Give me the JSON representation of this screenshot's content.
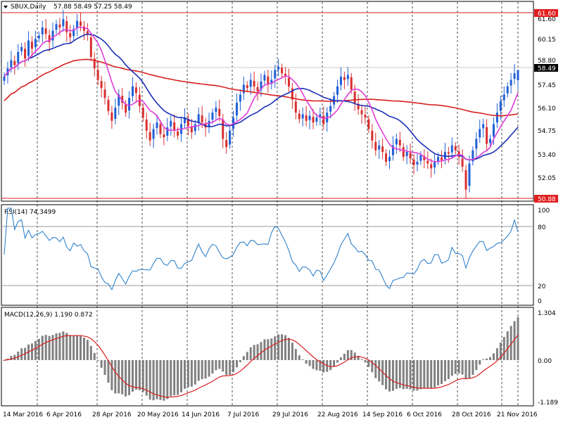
{
  "header": {
    "symbol_label": "SBUX,Daily",
    "ohlc": "57.88 58.49 57.25 58.49"
  },
  "price_pane": {
    "ticks": [
      "61.60",
      "60.15",
      "58.80",
      "57.45",
      "56.10",
      "54.75",
      "53.40",
      "52.05",
      "50.88"
    ],
    "resistance_label": "61.60",
    "support_label": "50.88",
    "current_label": "58.49",
    "colors": {
      "bull_candle": "#1f5fd6",
      "bear_candle": "#d92e2e",
      "ma_fast": "#e03cd9",
      "ma_mid": "#1b2fb8",
      "ma_slow": "#d91e1e",
      "level_line": "#d91e1e",
      "tag_red": "#e21d1d"
    }
  },
  "rsi_pane": {
    "title": "RSI(14) 74.3499",
    "ticks": [
      "100",
      "80",
      "20",
      "0"
    ],
    "color": "#1e78c8"
  },
  "macd_pane": {
    "title": "MACD(12,26,9) 1.190 0.872",
    "ticks": [
      "1.304",
      "0.00",
      "-1.189"
    ],
    "hist_color": "#808080",
    "signal_color": "#d91e1e"
  },
  "x_axis": {
    "dates": [
      "14 Mar 2016",
      "6 Apr 2016",
      "28 Apr 2016",
      "20 May 2016",
      "14 Jun 2016",
      "7 Jul 2016",
      "29 Jul 2016",
      "22 Aug 2016",
      "14 Sep 2016",
      "6 Oct 2016",
      "28 Oct 2016",
      "21 Nov 2016"
    ]
  },
  "chart_data": {
    "type": "candlestick",
    "title": "SBUX,Daily",
    "last_ohlc": {
      "open": 57.88,
      "high": 58.49,
      "low": 57.25,
      "close": 58.49
    },
    "closes": [
      58.1,
      58.6,
      59.1,
      58.8,
      59.6,
      59.9,
      59.2,
      60.3,
      59.8,
      60.4,
      60.6,
      61.1,
      60.7,
      60.2,
      60.9,
      61.3,
      61.1,
      61.6,
      60.8,
      60.5,
      61.0,
      61.5,
      61.2,
      60.9,
      60.7,
      59.3,
      58.6,
      57.9,
      57.4,
      56.8,
      56.0,
      55.4,
      56.2,
      57.0,
      56.5,
      55.9,
      56.8,
      57.5,
      57.1,
      56.3,
      55.6,
      54.8,
      54.2,
      54.9,
      55.3,
      54.6,
      54.4,
      55.0,
      55.4,
      54.8,
      54.5,
      55.2,
      55.6,
      55.1,
      54.7,
      55.2,
      55.8,
      55.3,
      55.0,
      55.4,
      55.9,
      56.2,
      55.7,
      54.3,
      53.8,
      54.8,
      55.6,
      56.5,
      57.0,
      57.6,
      57.4,
      57.9,
      57.5,
      57.2,
      57.8,
      58.2,
      57.6,
      57.9,
      58.5,
      58.7,
      58.3,
      58.1,
      57.5,
      56.7,
      55.9,
      55.5,
      55.8,
      55.4,
      55.7,
      55.3,
      55.6,
      55.8,
      55.2,
      55.9,
      56.3,
      56.9,
      57.5,
      58.1,
      57.9,
      58.2,
      57.3,
      56.5,
      56.1,
      55.8,
      55.6,
      54.9,
      54.2,
      53.6,
      53.9,
      53.5,
      52.9,
      53.2,
      53.9,
      54.3,
      53.9,
      53.2,
      53.5,
      53.1,
      52.7,
      52.9,
      53.3,
      53.0,
      52.8,
      52.5,
      52.9,
      53.2,
      53.0,
      53.5,
      53.4,
      53.9,
      53.6,
      53.2,
      52.6,
      51.2,
      52.8,
      53.6,
      54.3,
      54.9,
      55.2,
      54.0,
      54.3,
      55.2,
      55.9,
      56.6,
      57.0,
      57.5,
      57.9,
      58.3,
      58.49
    ],
    "indicators": {
      "moving_averages": [
        "fast (magenta)",
        "medium (blue)",
        "slow (red)"
      ],
      "rsi_period": 14,
      "rsi_last": 74.3499,
      "rsi_levels": [
        20,
        80
      ],
      "macd_params": [
        12,
        26,
        9
      ],
      "macd_last": 1.19,
      "macd_signal_last": 0.872
    },
    "horizontal_levels": [
      61.6,
      50.88
    ],
    "ylim": [
      50.5,
      62.6
    ],
    "x_tick_labels": [
      "14 Mar 2016",
      "6 Apr 2016",
      "28 Apr 2016",
      "20 May 2016",
      "14 Jun 2016",
      "7 Jul 2016",
      "29 Jul 2016",
      "22 Aug 2016",
      "14 Sep 2016",
      "6 Oct 2016",
      "28 Oct 2016",
      "21 Nov 2016"
    ],
    "grid": "vertical dashed"
  }
}
